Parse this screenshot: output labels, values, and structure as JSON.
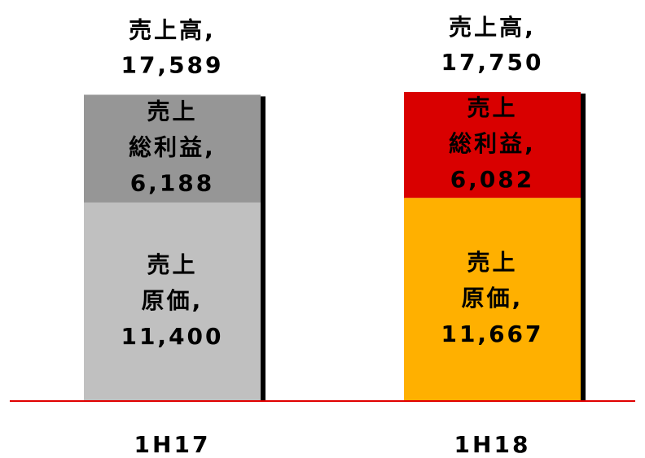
{
  "chart_data": {
    "type": "stacked-bar",
    "categories": [
      "1H17",
      "1H18"
    ],
    "series": [
      {
        "name": "売上原価,",
        "colors": [
          "#c0c0c0",
          "#ffb000"
        ],
        "values": [
          11400,
          11667
        ],
        "value_labels": [
          "11,400",
          "11,667"
        ]
      },
      {
        "name": "売上総利益,",
        "colors": [
          "#969696",
          "#d90000"
        ],
        "values": [
          6188,
          6082
        ],
        "value_labels": [
          "6,188",
          "6,082"
        ]
      }
    ],
    "total_name": "売上高,",
    "totals": [
      17589,
      17750
    ],
    "total_labels": [
      "17,589",
      "17,750"
    ],
    "baseline_color": "#e00000"
  }
}
